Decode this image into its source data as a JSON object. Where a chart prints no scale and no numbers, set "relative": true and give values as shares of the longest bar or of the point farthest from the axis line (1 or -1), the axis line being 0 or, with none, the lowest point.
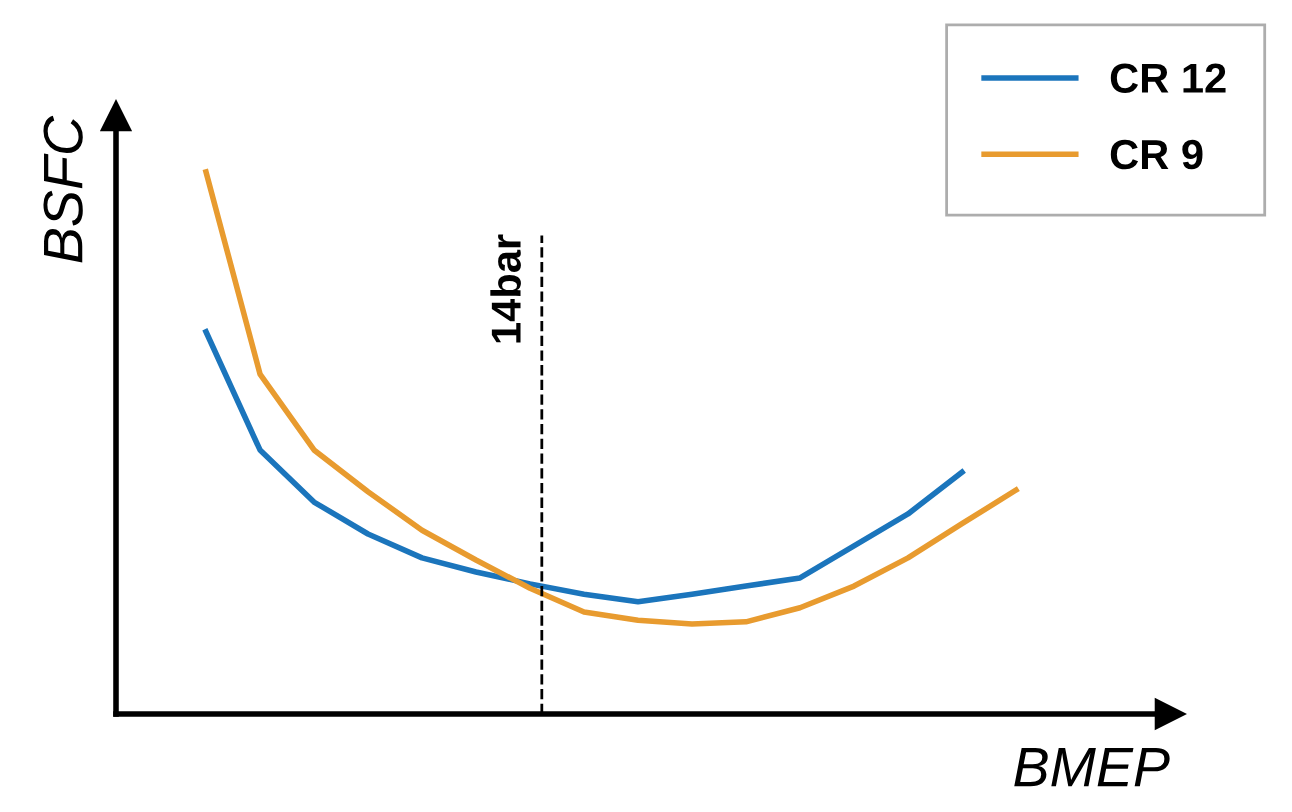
{
  "chart_data": {
    "type": "line",
    "relative": true,
    "xlabel": "BMEP",
    "ylabel": "BSFC",
    "legend": "top right",
    "marker": "none",
    "line_style": "solid",
    "categories": [
      null,
      null,
      null,
      null,
      null,
      null,
      null,
      null,
      null,
      null,
      null,
      null,
      null,
      null,
      null,
      null
    ],
    "series": [
      {
        "name": "CR 12",
        "color": "#1b75bc",
        "values": [
          0.705,
          0.487,
          0.391,
          0.332,
          0.288,
          0.262,
          0.24,
          0.221,
          0.207,
          0.221,
          0.236,
          0.251,
          0.31,
          0.369,
          0.446,
          null
        ]
      },
      {
        "name": "CR 9",
        "color": "#e89b2f",
        "values": [
          1,
          0.627,
          0.487,
          0.41,
          0.339,
          0.284,
          0.232,
          0.188,
          0.173,
          0.166,
          0.17,
          0.196,
          0.236,
          0.288,
          0.351,
          0.413
        ]
      }
    ],
    "annotations": [
      "14bar"
    ]
  }
}
